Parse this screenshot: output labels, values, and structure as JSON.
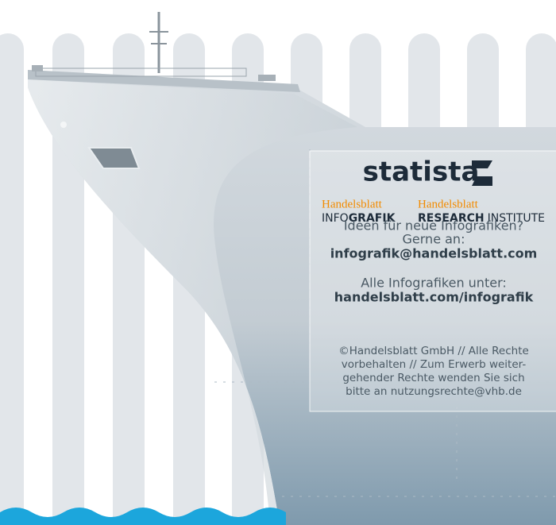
{
  "logo": "statista",
  "partners": [
    {
      "brand": "Handelsblatt",
      "bold_part": "GRAFIK",
      "regular_prefix": "INFO",
      "regular_suffix": null
    },
    {
      "brand": "Handelsblatt",
      "bold_part": "RESEARCH",
      "regular_prefix": null,
      "regular_suffix": "INSTITUTE"
    }
  ],
  "contact": {
    "lines": [
      "Ideen für neue Infografiken?",
      "Gerne an:"
    ],
    "email": "infografik@handelsblatt.com"
  },
  "all_graphics": {
    "line": "Alle Infografiken unter:",
    "url": "handelsblatt.com/infografik"
  },
  "copyright": [
    "©Handelsblatt GmbH // Alle Rechte",
    "vorbehalten // Zum Erwerb weiter-",
    "gehender Rechte wenden Sie sich",
    "bitte an nutzungsrechte@vhb.de"
  ]
}
